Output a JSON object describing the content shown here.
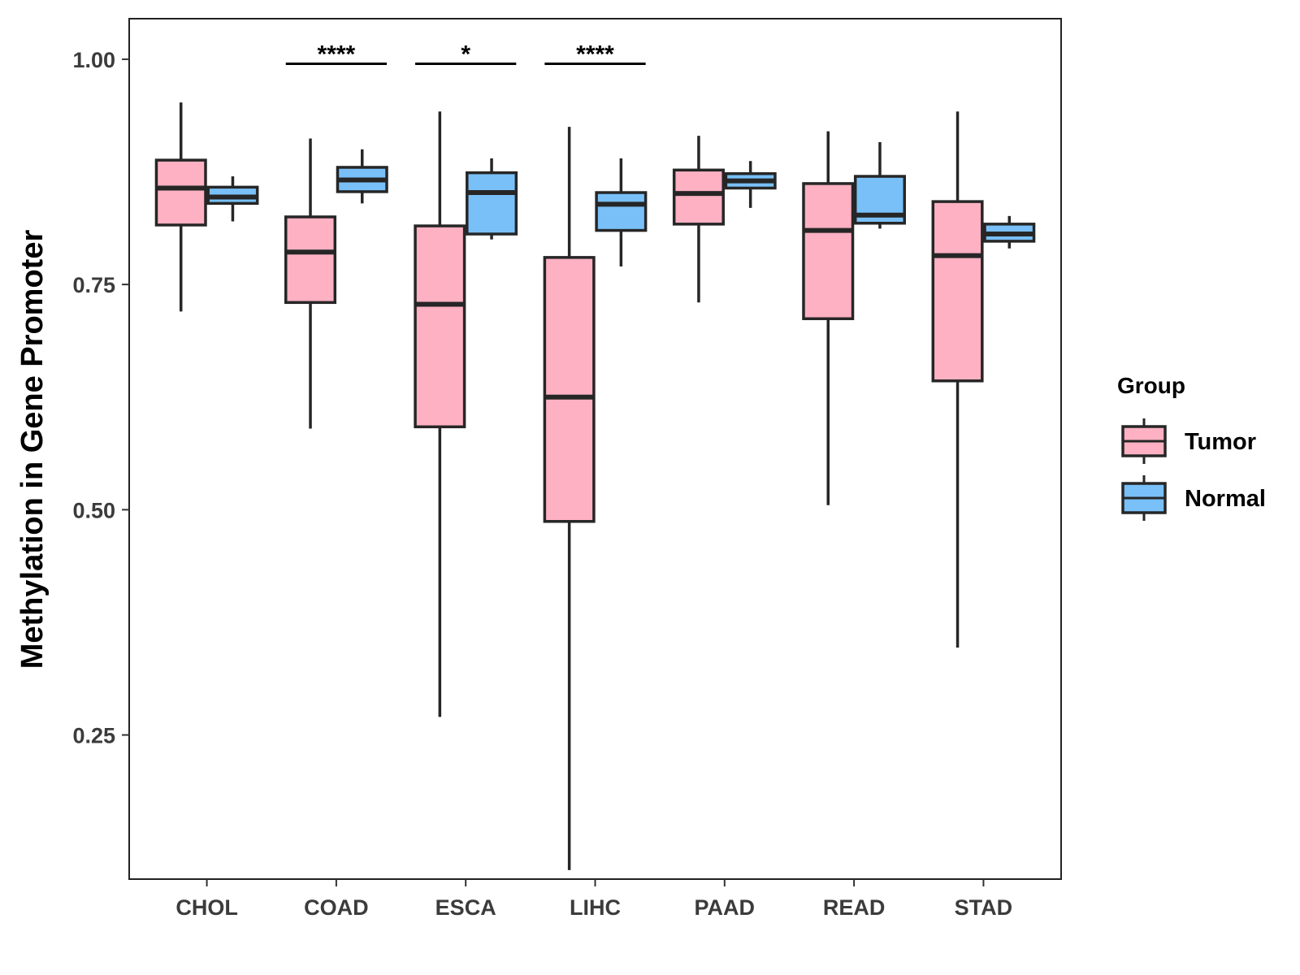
{
  "chart_data": {
    "type": "boxplot",
    "title": "",
    "xlabel": "",
    "ylabel": "Methylation in Gene Promoter",
    "ylim": [
      0.09,
      1.045
    ],
    "yticks": [
      0.25,
      0.5,
      0.75,
      1.0
    ],
    "ytick_labels": [
      "0.25",
      "0.50",
      "0.75",
      "1.00"
    ],
    "categories": [
      "CHOL",
      "COAD",
      "ESCA",
      "LIHC",
      "PAAD",
      "READ",
      "STAD"
    ],
    "legend": {
      "title": "Group",
      "position": "right",
      "entries": [
        {
          "name": "Tumor",
          "color": "#FDB1C3"
        },
        {
          "name": "Normal",
          "color": "#79C0F8"
        }
      ]
    },
    "series": [
      {
        "name": "Tumor",
        "color": "#FDB1C3",
        "boxes": [
          {
            "category": "CHOL",
            "min": 0.72,
            "q1": 0.816,
            "median": 0.857,
            "q3": 0.888,
            "max": 0.952
          },
          {
            "category": "COAD",
            "min": 0.59,
            "q1": 0.73,
            "median": 0.786,
            "q3": 0.825,
            "max": 0.912
          },
          {
            "category": "ESCA",
            "min": 0.27,
            "q1": 0.592,
            "median": 0.728,
            "q3": 0.815,
            "max": 0.942
          },
          {
            "category": "LIHC",
            "min": 0.1,
            "q1": 0.487,
            "median": 0.625,
            "q3": 0.78,
            "max": 0.925
          },
          {
            "category": "PAAD",
            "min": 0.73,
            "q1": 0.817,
            "median": 0.851,
            "q3": 0.877,
            "max": 0.915
          },
          {
            "category": "READ",
            "min": 0.505,
            "q1": 0.712,
            "median": 0.81,
            "q3": 0.862,
            "max": 0.92
          },
          {
            "category": "STAD",
            "min": 0.347,
            "q1": 0.643,
            "median": 0.782,
            "q3": 0.842,
            "max": 0.942
          }
        ]
      },
      {
        "name": "Normal",
        "color": "#79C0F8",
        "boxes": [
          {
            "category": "CHOL",
            "min": 0.82,
            "q1": 0.84,
            "median": 0.847,
            "q3": 0.858,
            "max": 0.87
          },
          {
            "category": "COAD",
            "min": 0.84,
            "q1": 0.853,
            "median": 0.866,
            "q3": 0.88,
            "max": 0.9
          },
          {
            "category": "ESCA",
            "min": 0.8,
            "q1": 0.806,
            "median": 0.852,
            "q3": 0.874,
            "max": 0.89
          },
          {
            "category": "LIHC",
            "min": 0.77,
            "q1": 0.81,
            "median": 0.839,
            "q3": 0.852,
            "max": 0.89
          },
          {
            "category": "PAAD",
            "min": 0.835,
            "q1": 0.857,
            "median": 0.865,
            "q3": 0.873,
            "max": 0.887
          },
          {
            "category": "READ",
            "min": 0.812,
            "q1": 0.818,
            "median": 0.827,
            "q3": 0.87,
            "max": 0.908
          },
          {
            "category": "STAD",
            "min": 0.79,
            "q1": 0.798,
            "median": 0.806,
            "q3": 0.817,
            "max": 0.826
          }
        ]
      }
    ],
    "annotations": [
      {
        "category": "COAD",
        "label": "****",
        "y": 0.995
      },
      {
        "category": "ESCA",
        "label": "*",
        "y": 0.995
      },
      {
        "category": "LIHC",
        "label": "****",
        "y": 0.995
      }
    ]
  }
}
